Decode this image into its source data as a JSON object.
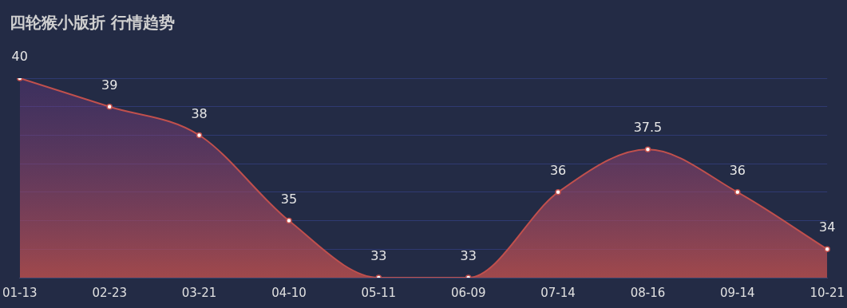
{
  "chart_data": {
    "type": "area",
    "title": "四轮猴小版折 行情趋势",
    "categories": [
      "01-13",
      "02-23",
      "03-21",
      "04-10",
      "05-11",
      "06-09",
      "07-14",
      "08-16",
      "09-14",
      "10-21"
    ],
    "series": [
      {
        "color": "#c0504d",
        "values": [
          40,
          39,
          38,
          35,
          33,
          33,
          36,
          37.5,
          36,
          34
        ]
      }
    ],
    "ylim": [
      33,
      40
    ],
    "yticks": [
      {
        "value": 33,
        "label": null
      },
      {
        "value": 34,
        "label": null
      },
      {
        "value": 35,
        "label": null
      },
      {
        "value": 36,
        "label": null
      },
      {
        "value": 37,
        "label": null
      },
      {
        "value": 38,
        "label": null
      },
      {
        "value": 39,
        "label": null
      },
      {
        "value": 40,
        "label": null
      }
    ],
    "tick_labels": "x",
    "grid": "y",
    "data_labels": true,
    "marker": "circle",
    "legend": false
  }
}
